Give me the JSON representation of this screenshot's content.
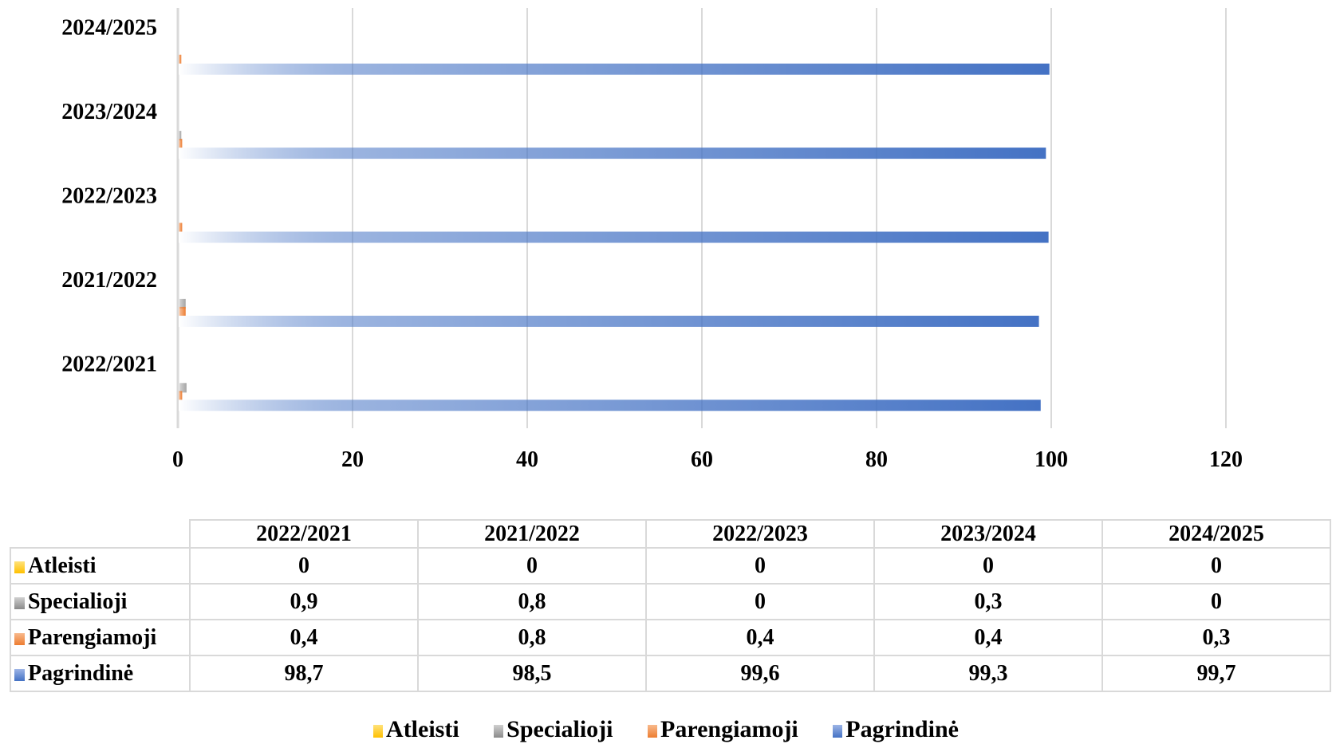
{
  "chart_data": {
    "type": "bar",
    "orientation": "horizontal",
    "categories": [
      "2022/2021",
      "2021/2022",
      "2022/2023",
      "2023/2024",
      "2024/2025"
    ],
    "series": [
      {
        "name": "Atleisti",
        "color": "#ffc000",
        "values": [
          0,
          0,
          0,
          0,
          0
        ]
      },
      {
        "name": "Specialioji",
        "color": "#a5a5a5",
        "values": [
          0.9,
          0.8,
          0,
          0.3,
          0
        ]
      },
      {
        "name": "Parengiamoji",
        "color": "#ed7d31",
        "values": [
          0.4,
          0.8,
          0.4,
          0.4,
          0.3
        ]
      },
      {
        "name": "Pagrindinė",
        "color": "#4472c4",
        "values": [
          98.7,
          98.5,
          99.6,
          99.3,
          99.7
        ]
      }
    ],
    "xlim": [
      0,
      120
    ],
    "xticks": [
      "0",
      "20",
      "40",
      "60",
      "80",
      "100",
      "120"
    ],
    "grid": true,
    "legend_position": "bottom",
    "data_table": {
      "columns": [
        "2022/2021",
        "2021/2022",
        "2022/2023",
        "2023/2024",
        "2024/2025"
      ],
      "rows": [
        {
          "label": "Atleisti",
          "values": [
            "0",
            "0",
            "0",
            "0",
            "0"
          ]
        },
        {
          "label": "Specialioji",
          "values": [
            "0,9",
            "0,8",
            "0",
            "0,3",
            "0"
          ]
        },
        {
          "label": "Parengiamoji",
          "values": [
            "0,4",
            "0,8",
            "0,4",
            "0,4",
            "0,3"
          ]
        },
        {
          "label": "Pagrindinė",
          "values": [
            "98,7",
            "98,5",
            "99,6",
            "99,3",
            "99,7"
          ]
        }
      ]
    }
  }
}
